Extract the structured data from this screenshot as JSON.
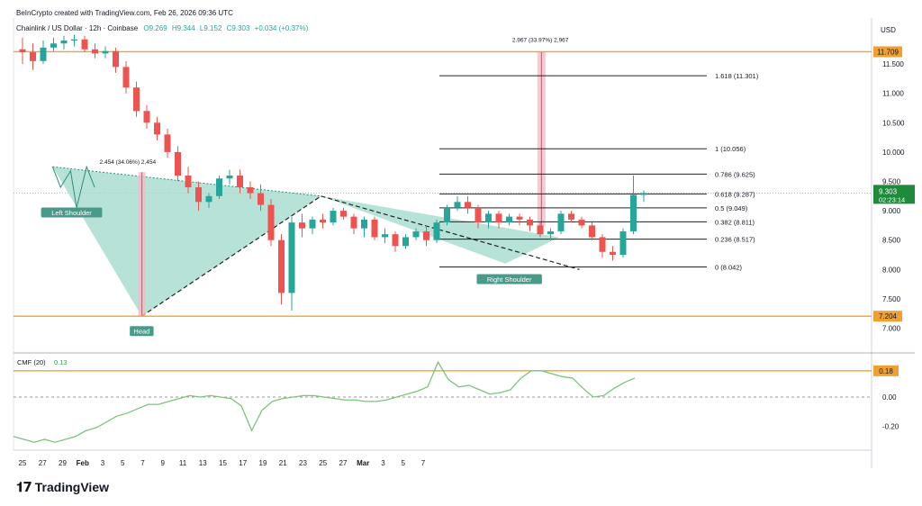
{
  "header": {
    "attribution": "BeInCrypto created with TradingView.com, Feb 26, 2026 09:36 UTC",
    "symbol": "Chainlink / US Dollar · 12h · Coinbase",
    "ohlc": {
      "open": "O9.269",
      "high": "H9.344",
      "low": "L9.152",
      "close": "C9.303",
      "change": "+0.034 (+0.37%)"
    },
    "currency": "USD"
  },
  "colors": {
    "up": "#26a69a",
    "down": "#ef5350",
    "orange": "#f0a030",
    "pattern_fill": "#9fd8cb",
    "label_bg": "#4a9a8a",
    "cmf_line": "#7bc47f",
    "measure_fill": "#f6bcc4"
  },
  "logo": {
    "text": "TradingView"
  },
  "chart_data": [
    {
      "type": "candlestick",
      "title": "Chainlink / US Dollar · 12h · Coinbase",
      "ylim": [
        6.7,
        12.1
      ],
      "y_ticks": [
        7.0,
        7.5,
        8.0,
        8.5,
        9.0,
        9.5,
        10.0,
        10.5,
        11.0,
        11.5
      ],
      "x_ticks": [
        "25",
        "27",
        "29",
        "Feb",
        "3",
        "5",
        "7",
        "9",
        "11",
        "13",
        "15",
        "17",
        "19",
        "21",
        "23",
        "25",
        "27",
        "Mar",
        "3",
        "5",
        "7"
      ],
      "candles": [
        [
          11.75,
          11.95,
          11.5,
          11.7
        ],
        [
          11.7,
          11.85,
          11.4,
          11.55
        ],
        [
          11.55,
          11.9,
          11.5,
          11.78
        ],
        [
          11.78,
          11.95,
          11.72,
          11.85
        ],
        [
          11.85,
          11.98,
          11.75,
          11.9
        ],
        [
          11.9,
          12.0,
          11.8,
          11.92
        ],
        [
          11.92,
          11.98,
          11.7,
          11.75
        ],
        [
          11.75,
          11.85,
          11.6,
          11.68
        ],
        [
          11.68,
          11.8,
          11.6,
          11.72
        ],
        [
          11.72,
          11.78,
          11.35,
          11.45
        ],
        [
          11.45,
          11.55,
          11.0,
          11.1
        ],
        [
          11.1,
          11.2,
          10.6,
          10.7
        ],
        [
          10.7,
          10.8,
          10.4,
          10.5
        ],
        [
          10.5,
          10.6,
          10.2,
          10.3
        ],
        [
          10.3,
          10.4,
          9.9,
          10.0
        ],
        [
          10.0,
          10.1,
          9.5,
          9.6
        ],
        [
          9.6,
          9.75,
          9.3,
          9.4
        ],
        [
          9.4,
          9.5,
          9.0,
          9.15
        ],
        [
          9.15,
          9.3,
          9.05,
          9.25
        ],
        [
          9.25,
          9.6,
          9.2,
          9.55
        ],
        [
          9.55,
          9.7,
          9.45,
          9.6
        ],
        [
          9.6,
          9.7,
          9.3,
          9.4
        ],
        [
          9.4,
          9.5,
          9.2,
          9.3
        ],
        [
          9.3,
          9.45,
          9.0,
          9.1
        ],
        [
          9.1,
          9.2,
          8.4,
          8.5
        ],
        [
          8.5,
          8.6,
          7.4,
          7.6
        ],
        [
          7.6,
          8.9,
          7.3,
          8.8
        ],
        [
          8.8,
          8.95,
          8.55,
          8.7
        ],
        [
          8.7,
          8.9,
          8.6,
          8.85
        ],
        [
          8.85,
          8.95,
          8.7,
          8.8
        ],
        [
          8.8,
          9.05,
          8.75,
          9.0
        ],
        [
          9.0,
          9.05,
          8.85,
          8.9
        ],
        [
          8.9,
          8.95,
          8.6,
          8.7
        ],
        [
          8.7,
          8.9,
          8.55,
          8.85
        ],
        [
          8.85,
          8.9,
          8.5,
          8.55
        ],
        [
          8.55,
          8.7,
          8.45,
          8.6
        ],
        [
          8.6,
          8.65,
          8.3,
          8.4
        ],
        [
          8.4,
          8.6,
          8.35,
          8.55
        ],
        [
          8.55,
          8.7,
          8.5,
          8.65
        ],
        [
          8.65,
          8.75,
          8.4,
          8.5
        ],
        [
          8.5,
          8.85,
          8.45,
          8.8
        ],
        [
          8.8,
          9.1,
          8.75,
          9.05
        ],
        [
          9.05,
          9.25,
          9.0,
          9.15
        ],
        [
          9.15,
          9.25,
          8.95,
          9.05
        ],
        [
          9.05,
          9.1,
          8.7,
          8.8
        ],
        [
          8.8,
          9.0,
          8.7,
          8.95
        ],
        [
          8.95,
          9.0,
          8.7,
          8.8
        ],
        [
          8.8,
          8.95,
          8.75,
          8.9
        ],
        [
          8.9,
          8.95,
          8.75,
          8.85
        ],
        [
          8.85,
          8.9,
          8.65,
          8.75
        ],
        [
          8.75,
          8.8,
          8.55,
          8.6
        ],
        [
          8.6,
          8.7,
          8.5,
          8.65
        ],
        [
          8.65,
          9.0,
          8.6,
          8.95
        ],
        [
          8.95,
          9.0,
          8.8,
          8.85
        ],
        [
          8.85,
          8.9,
          8.7,
          8.75
        ],
        [
          8.75,
          8.8,
          8.5,
          8.55
        ],
        [
          8.55,
          8.6,
          8.2,
          8.3
        ],
        [
          8.3,
          8.4,
          8.15,
          8.25
        ],
        [
          8.25,
          8.7,
          8.2,
          8.65
        ],
        [
          8.65,
          9.6,
          8.6,
          9.27
        ],
        [
          9.269,
          9.344,
          9.152,
          9.303
        ]
      ],
      "horizontal_levels": [
        {
          "value": 11.709,
          "label": "11.709"
        },
        {
          "value": 7.204,
          "label": "7.204"
        }
      ],
      "fib_levels": [
        {
          "ratio": "1.618",
          "value": 11.301
        },
        {
          "ratio": "1",
          "value": 10.056
        },
        {
          "ratio": "0.786",
          "value": 9.625
        },
        {
          "ratio": "0.618",
          "value": 9.287
        },
        {
          "ratio": "0.5",
          "value": 9.049
        },
        {
          "ratio": "0.382",
          "value": 8.811
        },
        {
          "ratio": "0.236",
          "value": 8.517
        },
        {
          "ratio": "0",
          "value": 8.042
        }
      ],
      "measures": [
        {
          "text": "2.454 (34.06%) 2,454",
          "from": 7.204,
          "to": 9.658
        },
        {
          "text": "2.967 (33.97%) 2,967",
          "from": 8.742,
          "to": 11.709
        }
      ],
      "annotations": [
        "Left Shoulder",
        "Head",
        "Right Shoulder"
      ],
      "last_price": {
        "value": "9.303",
        "countdown": "02:23:14"
      }
    },
    {
      "type": "line",
      "title": "CMF (20)",
      "current_value": "0.13",
      "ylim": [
        -0.38,
        0.33
      ],
      "y_ticks": [
        0.0,
        -0.2
      ],
      "reference_line": {
        "value": 0.18,
        "label": "0.18"
      },
      "values": [
        -0.27,
        -0.29,
        -0.31,
        -0.29,
        -0.31,
        -0.29,
        -0.27,
        -0.23,
        -0.21,
        -0.17,
        -0.13,
        -0.11,
        -0.08,
        -0.05,
        -0.05,
        -0.03,
        -0.01,
        0.01,
        0.0,
        0.01,
        0.0,
        -0.01,
        -0.06,
        -0.23,
        -0.09,
        -0.03,
        -0.01,
        0.0,
        0.01,
        0.01,
        0.0,
        -0.01,
        -0.02,
        -0.02,
        -0.03,
        -0.03,
        -0.02,
        0.0,
        0.02,
        0.04,
        0.07,
        0.24,
        0.12,
        0.07,
        0.08,
        0.05,
        0.02,
        0.03,
        0.05,
        0.13,
        0.18,
        0.18,
        0.16,
        0.14,
        0.13,
        0.06,
        0.0,
        0.01,
        0.06,
        0.1,
        0.13
      ]
    }
  ]
}
